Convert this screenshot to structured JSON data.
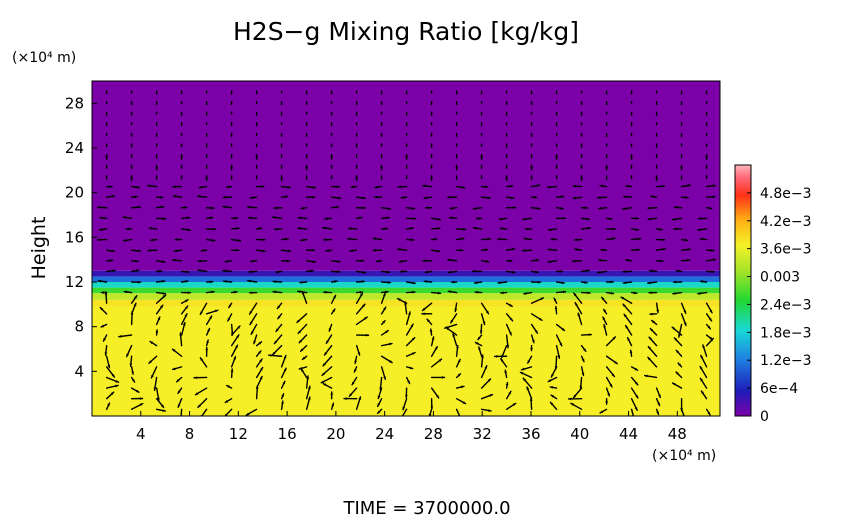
{
  "chart_data": {
    "type": "heatmap",
    "title": "H2S−g Mixing Ratio [kg/kg]",
    "ylabel": "Height",
    "y_unit": "(×10⁴ m)",
    "x_unit": "(×10⁴ m)",
    "footer": "TIME = 3700000.0",
    "x_range": [
      0,
      51.5
    ],
    "y_range": [
      0,
      30
    ],
    "x_ticks": [
      4,
      8,
      12,
      16,
      20,
      24,
      28,
      32,
      36,
      40,
      44,
      48
    ],
    "y_ticks": [
      4,
      8,
      12,
      16,
      20,
      24,
      28
    ],
    "colorbar": {
      "range": [
        0,
        0.0054
      ],
      "tick_values": [
        0,
        0.0006,
        0.0012,
        0.0018,
        0.0024,
        0.003,
        0.0036,
        0.0042,
        0.0048
      ],
      "tick_labels": [
        "0",
        "6e−4",
        "1.2e−3",
        "1.8e−3",
        "2.4e−3",
        "0.003",
        "3.6e−3",
        "4.2e−3",
        "4.8e−3"
      ]
    },
    "layers": [
      {
        "y_from": 0,
        "y_to": 9.8,
        "value": 0.0037
      },
      {
        "y_from": 9.8,
        "y_to": 10.4,
        "value": 0.0038
      },
      {
        "y_from": 10.4,
        "y_to": 11.0,
        "value": 0.0033
      },
      {
        "y_from": 11.0,
        "y_to": 11.5,
        "value": 0.0026
      },
      {
        "y_from": 11.5,
        "y_to": 12.0,
        "value": 0.0019
      },
      {
        "y_from": 12.0,
        "y_to": 12.5,
        "value": 0.0011
      },
      {
        "y_from": 12.5,
        "y_to": 13.0,
        "value": 0.0004
      },
      {
        "y_from": 13.0,
        "y_to": 30,
        "value": 0.0
      }
    ],
    "vector_field": "wind vectors overlaid on the field"
  }
}
